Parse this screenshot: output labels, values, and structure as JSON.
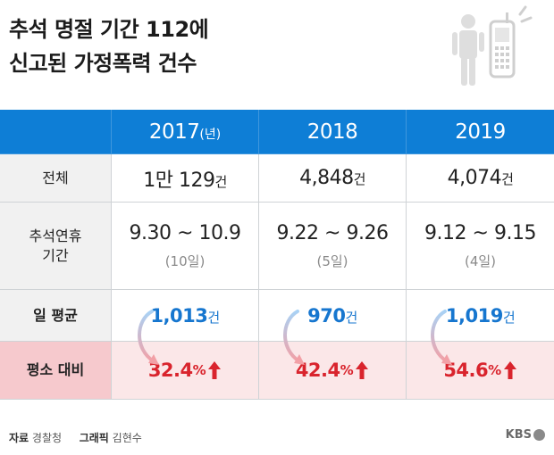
{
  "title": {
    "line1": "추석 명절 기간 112에",
    "line2": "신고된 가정폭력 건수"
  },
  "header": {
    "years": [
      {
        "year": "2017",
        "unit": "(년)"
      },
      {
        "year": "2018",
        "unit": ""
      },
      {
        "year": "2019",
        "unit": ""
      }
    ]
  },
  "rows": {
    "total": {
      "label": "전체",
      "values": [
        {
          "num": "1만 129",
          "unit": "건"
        },
        {
          "num": "4,848",
          "unit": "건"
        },
        {
          "num": "4,074",
          "unit": "건"
        }
      ]
    },
    "period": {
      "label_line1": "추석연휴",
      "label_line2": "기간",
      "values": [
        {
          "range": "9.30 ~ 10.9",
          "days": "(10일)"
        },
        {
          "range": "9.22 ~ 9.26",
          "days": "(5일)"
        },
        {
          "range": "9.12 ~ 9.15",
          "days": "(4일)"
        }
      ]
    },
    "daily_avg": {
      "label": "일 평균",
      "values": [
        {
          "num": "1,013",
          "unit": "건"
        },
        {
          "num": "970",
          "unit": "건"
        },
        {
          "num": "1,019",
          "unit": "건"
        }
      ]
    },
    "vs_normal": {
      "label": "평소 대비",
      "values": [
        {
          "num": "32.4",
          "unit": "%"
        },
        {
          "num": "42.4",
          "unit": "%"
        },
        {
          "num": "54.6",
          "unit": "%"
        }
      ]
    }
  },
  "footer": {
    "source_key": "자료",
    "source_val": "경찰청",
    "graphic_key": "그래픽",
    "graphic_val": "김현수",
    "logo": "KBS"
  },
  "colors": {
    "header_blue": "#0e7ed6",
    "value_blue": "#1676cf",
    "value_red": "#d9242d",
    "pink_row": "#fbe7e8",
    "pink_label": "#f6c9cd"
  }
}
